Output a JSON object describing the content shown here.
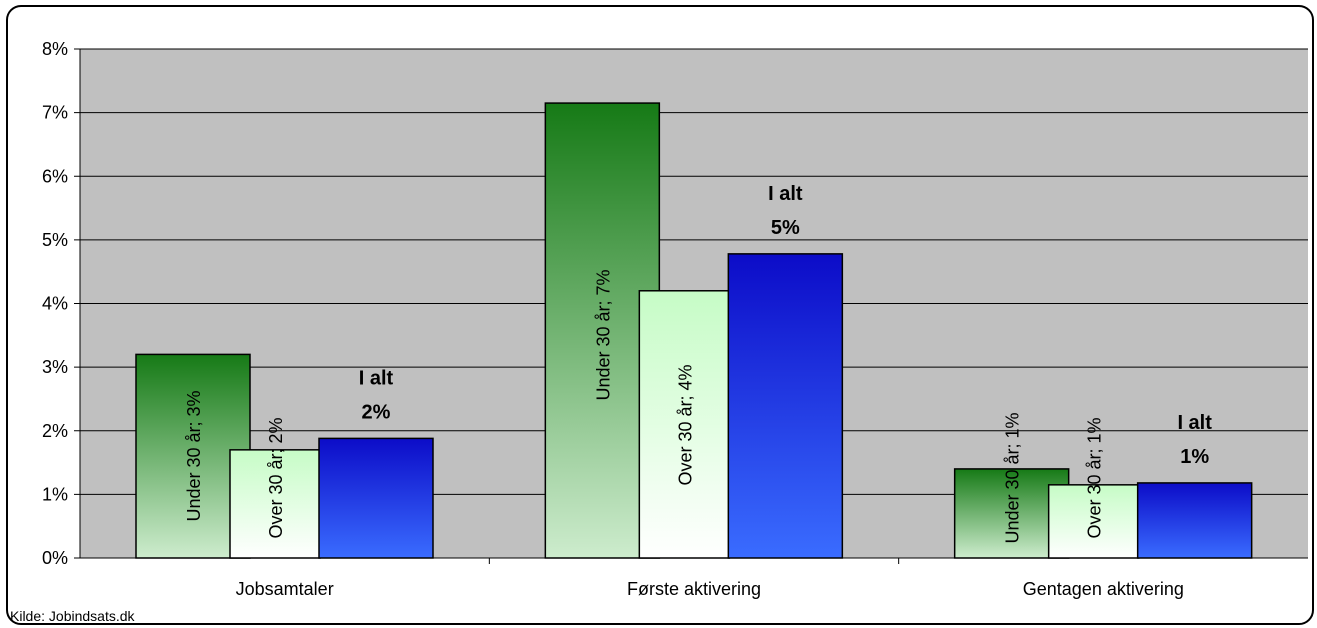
{
  "chart_data": {
    "type": "bar",
    "categories": [
      "Jobsamtaler",
      "Første aktivering",
      "Gentagen aktivering"
    ],
    "series": [
      {
        "values": [
          3.2,
          7.15,
          1.4
        ],
        "labels": [
          "Under 30 år; 3%",
          "Under 30 år; 7%",
          "Under 30 år; 1%"
        ],
        "colors": [
          "#1a7a1a",
          "#c8e8c8"
        ]
      },
      {
        "values": [
          1.7,
          4.2,
          1.15
        ],
        "labels": [
          "Over 30 år; 2%",
          "Over 30 år; 4%",
          "Over 30 år; 1%"
        ],
        "colors": [
          "#ccffcc",
          "#ffffff"
        ]
      },
      {
        "values": [
          1.88,
          4.78,
          1.18
        ],
        "labels": [
          "I alt\n2%",
          "I alt\n5%",
          "I alt\n1%"
        ],
        "colors": [
          "#1010c8",
          "#3a6aff"
        ]
      }
    ],
    "total_label": "I alt",
    "total_values_text": [
      "2%",
      "5%",
      "1%"
    ],
    "ylim": [
      0,
      8
    ],
    "yticks": [
      "0%",
      "1%",
      "2%",
      "3%",
      "4%",
      "5%",
      "6%",
      "7%",
      "8%"
    ],
    "grid": true,
    "source": "Kilde: Jobindsats.dk"
  }
}
